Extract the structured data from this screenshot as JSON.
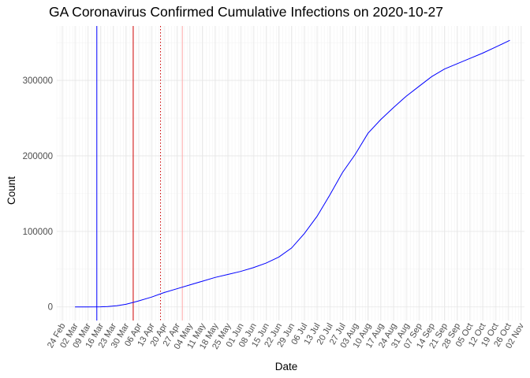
{
  "chart_data": {
    "type": "line",
    "title": "GA Coronavirus Confirmed Cumulative Infections on 2020-10-27",
    "xlabel": "Date",
    "ylabel": "Count",
    "x_axis_type": "date",
    "xlim": [
      "2020-02-21",
      "2020-11-04"
    ],
    "ylim": [
      -18000,
      372000
    ],
    "y_ticks": [
      0,
      100000,
      200000,
      300000
    ],
    "y_tick_labels": [
      "0",
      "100000",
      "200000",
      "300000"
    ],
    "x_ticks": [
      "2020-02-24",
      "2020-03-02",
      "2020-03-09",
      "2020-03-16",
      "2020-03-23",
      "2020-03-30",
      "2020-04-06",
      "2020-04-13",
      "2020-04-20",
      "2020-04-27",
      "2020-05-04",
      "2020-05-11",
      "2020-05-18",
      "2020-05-25",
      "2020-06-01",
      "2020-06-08",
      "2020-06-15",
      "2020-06-22",
      "2020-06-29",
      "2020-07-06",
      "2020-07-13",
      "2020-07-20",
      "2020-07-27",
      "2020-08-03",
      "2020-08-10",
      "2020-08-17",
      "2020-08-24",
      "2020-08-31",
      "2020-09-07",
      "2020-09-14",
      "2020-09-21",
      "2020-09-28",
      "2020-10-05",
      "2020-10-12",
      "2020-10-19",
      "2020-10-26",
      "2020-11-02"
    ],
    "x_tick_labels": [
      "24 Feb",
      "02 Mar",
      "09 Mar",
      "16 Mar",
      "23 Mar",
      "30 Mar",
      "06 Apr",
      "13 Apr",
      "20 Apr",
      "27 Apr",
      "04 May",
      "11 May",
      "18 May",
      "25 May",
      "01 Jun",
      "08 Jun",
      "15 Jun",
      "22 Jun",
      "29 Jun",
      "06 Jul",
      "13 Jul",
      "20 Jul",
      "27 Jul",
      "03 Aug",
      "10 Aug",
      "17 Aug",
      "24 Aug",
      "31 Aug",
      "07 Sep",
      "14 Sep",
      "21 Sep",
      "28 Sep",
      "05 Oct",
      "12 Oct",
      "19 Oct",
      "26 Oct",
      "02 Nov"
    ],
    "grid": true,
    "series": [
      {
        "color": "#0000ff",
        "x": [
          "2020-03-02",
          "2020-03-09",
          "2020-03-16",
          "2020-03-20",
          "2020-03-25",
          "2020-03-30",
          "2020-04-03",
          "2020-04-06",
          "2020-04-13",
          "2020-04-20",
          "2020-04-27",
          "2020-05-04",
          "2020-05-11",
          "2020-05-18",
          "2020-05-25",
          "2020-06-01",
          "2020-06-08",
          "2020-06-15",
          "2020-06-22",
          "2020-06-29",
          "2020-07-06",
          "2020-07-13",
          "2020-07-20",
          "2020-07-27",
          "2020-08-03",
          "2020-08-10",
          "2020-08-17",
          "2020-08-24",
          "2020-08-31",
          "2020-09-07",
          "2020-09-14",
          "2020-09-21",
          "2020-09-28",
          "2020-10-05",
          "2020-10-12",
          "2020-10-19",
          "2020-10-27"
        ],
        "y": [
          0,
          0,
          100,
          500,
          1500,
          3500,
          6000,
          8000,
          13000,
          19000,
          24000,
          29000,
          34000,
          39000,
          43000,
          47000,
          52000,
          58000,
          66000,
          78000,
          97000,
          120000,
          148000,
          178000,
          202000,
          230000,
          248000,
          264000,
          279000,
          292000,
          305000,
          315000,
          322000,
          329000,
          336000,
          344000,
          353000
        ]
      }
    ],
    "vertical_lines": [
      {
        "x": "2020-03-14",
        "color": "#0000ff",
        "style": "solid"
      },
      {
        "x": "2020-04-03",
        "color": "#cc0000",
        "style": "solid"
      },
      {
        "x": "2020-04-18",
        "color": "#cc0000",
        "style": "dotted"
      },
      {
        "x": "2020-04-30",
        "color": "#ffaaaa",
        "style": "solid"
      }
    ]
  }
}
